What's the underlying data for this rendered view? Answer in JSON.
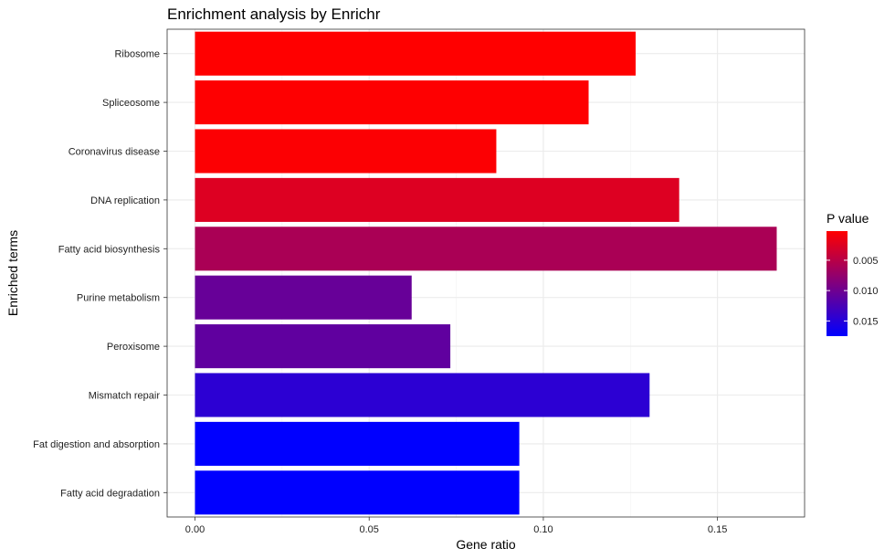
{
  "chart_data": {
    "type": "bar",
    "orientation": "horizontal",
    "title": "Enrichment analysis by Enrichr",
    "xlabel": "Gene ratio",
    "ylabel": "Enriched terms",
    "xlim": [
      -0.008,
      0.175
    ],
    "xticks": [
      0.0,
      0.05,
      0.1,
      0.15
    ],
    "xtick_labels": [
      "0.00",
      "0.05",
      "0.10",
      "0.15"
    ],
    "grid": true,
    "categories": [
      "Ribosome",
      "Spliceosome",
      "Coronavirus disease",
      "DNA replication",
      "Fatty acid biosynthesis",
      "Purine metabolism",
      "Peroxisome",
      "Mismatch repair",
      "Fat digestion and absorption",
      "Fatty acid degradation"
    ],
    "values": [
      0.1265,
      0.113,
      0.0865,
      0.139,
      0.167,
      0.0622,
      0.0733,
      0.1305,
      0.0931,
      0.0931
    ],
    "pvalues": [
      0.0002,
      0.0003,
      0.0004,
      0.0025,
      0.006,
      0.0105,
      0.011,
      0.0145,
      0.0175,
      0.0175
    ],
    "legend": {
      "title": "P value",
      "position": "right",
      "ticks": [
        0.005,
        0.01,
        0.015
      ],
      "tick_labels": [
        "0.005",
        "0.010",
        "0.015"
      ],
      "range": [
        0.0002,
        0.0175
      ],
      "low_color": "#ff0000",
      "high_color": "#0000ff"
    }
  }
}
